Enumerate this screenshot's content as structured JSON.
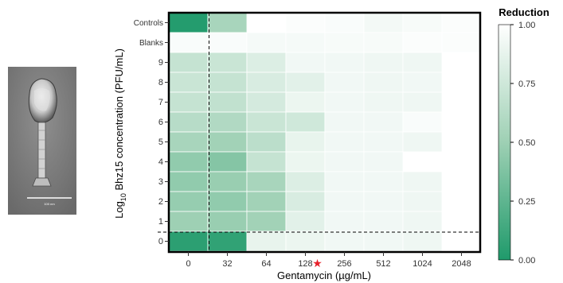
{
  "chart_data": {
    "type": "heatmap",
    "xlabel": "Gentamycin (µg/mL)",
    "ylabel_main": "Log",
    "ylabel_sub": "10",
    "ylabel_rest": " Bhz15 concentration (PFU/mL)",
    "x_categories": [
      "0",
      "32",
      "64",
      "128",
      "256",
      "512",
      "1024",
      "2048"
    ],
    "marked_category": "128",
    "marker_color": "#e8202a",
    "y_categories": [
      "Controls",
      "Blanks",
      "9",
      "8",
      "7",
      "6",
      "5",
      "4",
      "3",
      "2",
      "1",
      "0"
    ],
    "values": [
      [
        0.02,
        0.55,
        null,
        0.98,
        0.97,
        0.94,
        0.96,
        0.98
      ],
      [
        0.97,
        0.97,
        0.95,
        0.95,
        0.96,
        0.96,
        0.98,
        0.98
      ],
      [
        0.7,
        0.72,
        0.82,
        0.93,
        0.93,
        0.92,
        0.92,
        null
      ],
      [
        0.72,
        0.7,
        0.8,
        0.85,
        0.93,
        0.92,
        0.93,
        null
      ],
      [
        0.7,
        0.68,
        0.78,
        0.9,
        0.93,
        0.92,
        0.92,
        null
      ],
      [
        0.63,
        0.6,
        0.72,
        0.75,
        0.93,
        0.93,
        0.97,
        null
      ],
      [
        0.55,
        0.52,
        0.65,
        0.88,
        0.93,
        0.93,
        0.92,
        null
      ],
      [
        0.45,
        0.4,
        0.7,
        0.9,
        0.93,
        0.93,
        null,
        null
      ],
      [
        0.45,
        0.48,
        0.55,
        0.82,
        0.93,
        0.93,
        0.92,
        null
      ],
      [
        0.47,
        0.45,
        0.52,
        0.8,
        0.93,
        0.93,
        0.92,
        null
      ],
      [
        0.5,
        0.48,
        0.52,
        0.85,
        0.93,
        0.93,
        0.92,
        null
      ],
      [
        0.05,
        0.07,
        0.88,
        0.9,
        0.93,
        0.93,
        0.92,
        null
      ]
    ],
    "colorscale": {
      "low": "#1f9a6b",
      "mid": "#9ed0b4",
      "high": "#ffffff"
    },
    "legend": {
      "title": "Reduction",
      "ticks": [
        "1.00",
        "0.75",
        "0.50",
        "0.25",
        "0.00"
      ],
      "tick_values": [
        1.0,
        0.75,
        0.5,
        0.25,
        0.0
      ],
      "placement": "right"
    },
    "reference_lines": {
      "vertical_between": [
        "0",
        "32"
      ],
      "horizontal_between": [
        "1",
        "0"
      ],
      "style": "dashed"
    }
  },
  "micrograph": {
    "scale_bar_label": "100 nm"
  }
}
